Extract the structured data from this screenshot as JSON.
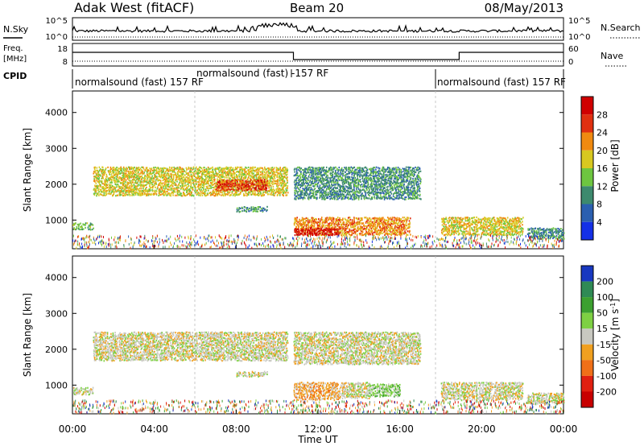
{
  "header": {
    "title_left": "Adak West (fitACF)",
    "title_center": "Beam 20",
    "title_right": "08/May/2013"
  },
  "noise_panel": {
    "left_label": "N.Sky",
    "right_label": "N.Search",
    "left_ticks": [
      "10^5",
      "10^0"
    ],
    "right_ticks": [
      "10^5",
      "10^0"
    ]
  },
  "freq_panel": {
    "left_label_line1": "Freq.",
    "left_label_line2": "[MHz]",
    "right_label": "Nave",
    "left_ticks": [
      "18",
      "8"
    ],
    "right_ticks": [
      "60",
      "0"
    ]
  },
  "cpid": {
    "label": "CPID",
    "segments": [
      {
        "text": "normalsound (fast) 157 RF",
        "start_hour": 0
      },
      {
        "text": "normalsound (fast) -157 RF",
        "start_hour": 10.8
      },
      {
        "text": "normalsound (fast) 157 RF",
        "start_hour": 18
      }
    ]
  },
  "x_axis": {
    "label": "Time UT",
    "ticks": [
      "00:00",
      "04:00",
      "08:00",
      "12:00",
      "16:00",
      "20:00",
      "00:00"
    ]
  },
  "chart_data": [
    {
      "type": "heatmap",
      "name": "power",
      "x_range_hours": [
        0,
        24
      ],
      "ylabel": "Slant Range [km]",
      "y_ticks": [
        1000,
        2000,
        3000,
        4000
      ],
      "ylim": [
        200,
        4600
      ],
      "colorbar_label": "Power [dB]",
      "colorbar_ticks": [
        4,
        8,
        12,
        16,
        20,
        24,
        28
      ],
      "colors": [
        "#1430e6",
        "#2b5fb0",
        "#3d8a6e",
        "#6ec640",
        "#d8c820",
        "#f08a10",
        "#e03010",
        "#d00000"
      ],
      "regions": [
        {
          "t0": 0.0,
          "t1": 1.0,
          "r0": 750,
          "r1": 950,
          "level": 3
        },
        {
          "t0": 1.0,
          "t1": 10.5,
          "r0": 1700,
          "r1": 2500,
          "level": 4
        },
        {
          "t0": 7.0,
          "t1": 9.5,
          "r0": 1850,
          "r1": 2150,
          "level": 6
        },
        {
          "t0": 8.0,
          "t1": 9.5,
          "r0": 1250,
          "r1": 1400,
          "level": 2
        },
        {
          "t0": 10.8,
          "t1": 16.5,
          "r0": 600,
          "r1": 1100,
          "level": 5
        },
        {
          "t0": 10.8,
          "t1": 13.0,
          "r0": 600,
          "r1": 800,
          "level": 7
        },
        {
          "t0": 10.8,
          "t1": 17.0,
          "r0": 1600,
          "r1": 2500,
          "level": 2
        },
        {
          "t0": 18.0,
          "t1": 22.0,
          "r0": 600,
          "r1": 1100,
          "level": 4
        },
        {
          "t0": 22.2,
          "t1": 24.0,
          "r0": 500,
          "r1": 800,
          "level": 2
        }
      ]
    },
    {
      "type": "heatmap",
      "name": "velocity",
      "x_range_hours": [
        0,
        24
      ],
      "ylabel": "Slant Range [km]",
      "y_ticks": [
        1000,
        2000,
        3000,
        4000
      ],
      "ylim": [
        200,
        4600
      ],
      "colorbar_label": "Velocity [m s^-1]",
      "colorbar_ticks": [
        200,
        100,
        50,
        15,
        -15,
        -50,
        -100,
        -200
      ],
      "colors": [
        "#1838c0",
        "#2f8a55",
        "#3ca030",
        "#7ed043",
        "#c8c8c0",
        "#f0a020",
        "#f07018",
        "#e02010",
        "#c80000"
      ],
      "regions": [
        {
          "t0": 0.0,
          "t1": 1.0,
          "r0": 750,
          "r1": 950,
          "level": 4
        },
        {
          "t0": 1.0,
          "t1": 10.5,
          "r0": 1700,
          "r1": 2500,
          "level": 4
        },
        {
          "t0": 8.0,
          "t1": 9.5,
          "r0": 1250,
          "r1": 1400,
          "level": 4
        },
        {
          "t0": 10.8,
          "t1": 13.0,
          "r0": 600,
          "r1": 1100,
          "level": 5
        },
        {
          "t0": 13.0,
          "t1": 14.5,
          "r0": 650,
          "r1": 1100,
          "level": 4
        },
        {
          "t0": 14.5,
          "t1": 16.0,
          "r0": 700,
          "r1": 1050,
          "level": 3
        },
        {
          "t0": 10.8,
          "t1": 17.0,
          "r0": 1600,
          "r1": 2500,
          "level": 4
        },
        {
          "t0": 18.0,
          "t1": 22.0,
          "r0": 600,
          "r1": 1100,
          "level": 4
        },
        {
          "t0": 22.2,
          "t1": 24.0,
          "r0": 500,
          "r1": 800,
          "level": 4
        }
      ]
    }
  ]
}
